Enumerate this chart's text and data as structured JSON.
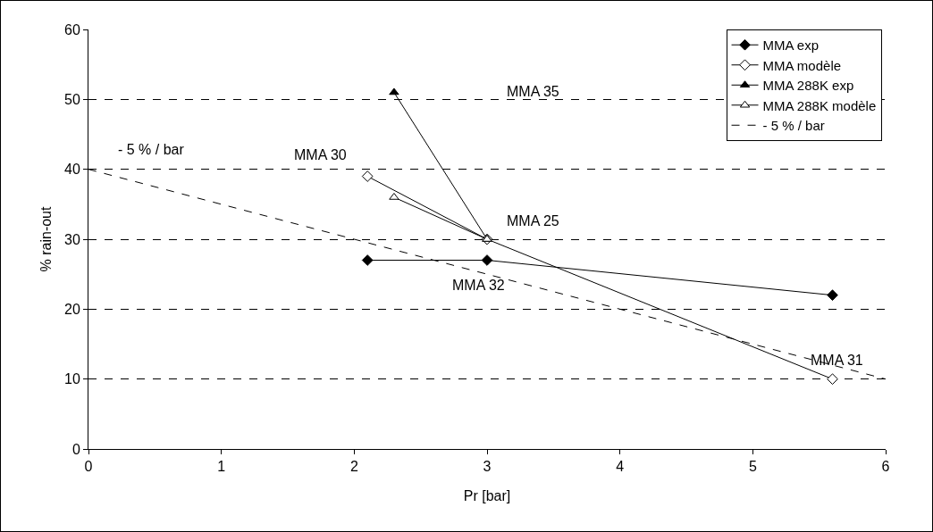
{
  "chart_data": {
    "type": "line",
    "xlabel": "Pr [bar]",
    "ylabel": "% rain-out",
    "xlim": [
      0,
      6
    ],
    "xticks": [
      0,
      1,
      2,
      3,
      4,
      5,
      6
    ],
    "ylim": [
      0,
      60
    ],
    "yticks": [
      0,
      10,
      20,
      30,
      40,
      50,
      60
    ],
    "grid": "y",
    "legend": "top right",
    "series": [
      {
        "name": "MMA exp",
        "color": "#000000",
        "marker": "diamond",
        "line_style": "solid",
        "x": [
          2.1,
          3,
          5.6
        ],
        "values": [
          27,
          27,
          22
        ]
      },
      {
        "name": "MMA modèle",
        "color": "#000000",
        "marker": "diamond-open",
        "line_style": "solid",
        "x": [
          2.1,
          3,
          5.6
        ],
        "values": [
          39,
          30,
          10
        ]
      },
      {
        "name": "MMA 288K exp",
        "color": "#000000",
        "marker": "triangle",
        "line_style": "solid",
        "x": [
          2.3,
          3
        ],
        "values": [
          51,
          30
        ]
      },
      {
        "name": "MMA 288K modèle",
        "color": "#000000",
        "marker": "triangle-open",
        "line_style": "solid",
        "x": [
          2.3,
          3
        ],
        "values": [
          36,
          30
        ]
      },
      {
        "name": "- 5 % / bar",
        "color": "#000000",
        "marker": "none",
        "line_style": "dashed",
        "x": [
          0,
          6
        ],
        "values": [
          40,
          10
        ]
      }
    ],
    "annotations": [
      {
        "text": "- 5 % / bar",
        "x": 0,
        "y": 40
      },
      "MMA 35",
      {
        "text": "MMA 30",
        "x": 2.1,
        "y": 39
      },
      {
        "text": "MMA 25",
        "x": 3,
        "y": 30
      },
      {
        "text": "MMA 32",
        "x": 3,
        "y": 27
      },
      {
        "text": "MMA 31",
        "x": 5.6,
        "y": 10
      }
    ]
  }
}
